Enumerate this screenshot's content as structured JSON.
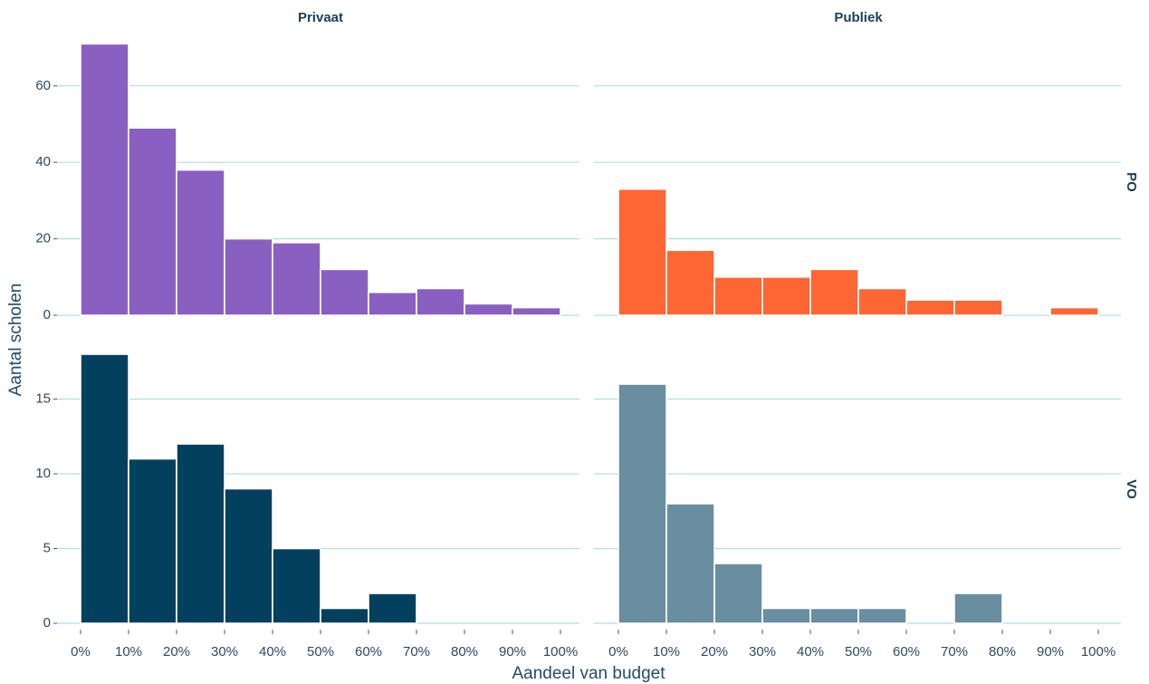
{
  "chart_data": {
    "type": "bar",
    "subtype": "faceted-histogram",
    "xlabel": "Aandeel van budget",
    "ylabel": "Aantal scholen",
    "x_ticks": [
      "0%",
      "10%",
      "20%",
      "30%",
      "40%",
      "50%",
      "60%",
      "70%",
      "80%",
      "90%",
      "100%"
    ],
    "bin_edges": [
      0,
      10,
      20,
      30,
      40,
      50,
      60,
      70,
      80,
      90,
      100
    ],
    "grid": true,
    "legend": "none",
    "column_labels": [
      "Privaat",
      "Publiek"
    ],
    "row_labels": [
      "PO",
      "VO"
    ],
    "facets": [
      {
        "column": "Privaat",
        "row": "PO",
        "color": "#8a5fc2",
        "counts": [
          71,
          49,
          38,
          20,
          19,
          12,
          6,
          7,
          3,
          2
        ],
        "ylim": [
          0,
          72
        ],
        "y_ticks": [
          0,
          20,
          40,
          60
        ]
      },
      {
        "column": "Publiek",
        "row": "PO",
        "color": "#fe6634",
        "counts": [
          33,
          17,
          10,
          10,
          12,
          7,
          4,
          4,
          0,
          2
        ],
        "ylim": [
          0,
          72
        ],
        "y_ticks": [
          0,
          20,
          40,
          60
        ]
      },
      {
        "column": "Privaat",
        "row": "VO",
        "color": "#03405e",
        "counts": [
          18,
          11,
          12,
          9,
          5,
          1,
          2,
          0,
          0,
          0
        ],
        "ylim": [
          0,
          18
        ],
        "y_ticks": [
          0,
          5,
          10,
          15
        ]
      },
      {
        "column": "Publiek",
        "row": "VO",
        "color": "#688ea0",
        "counts": [
          16,
          8,
          4,
          1,
          1,
          1,
          0,
          2,
          0,
          0
        ],
        "ylim": [
          0,
          18
        ],
        "y_ticks": [
          0,
          5,
          10,
          15
        ]
      }
    ],
    "colors": {
      "grid": "#b6dce9",
      "text": "#2e4a63",
      "strip": "#1c3f5a"
    }
  }
}
